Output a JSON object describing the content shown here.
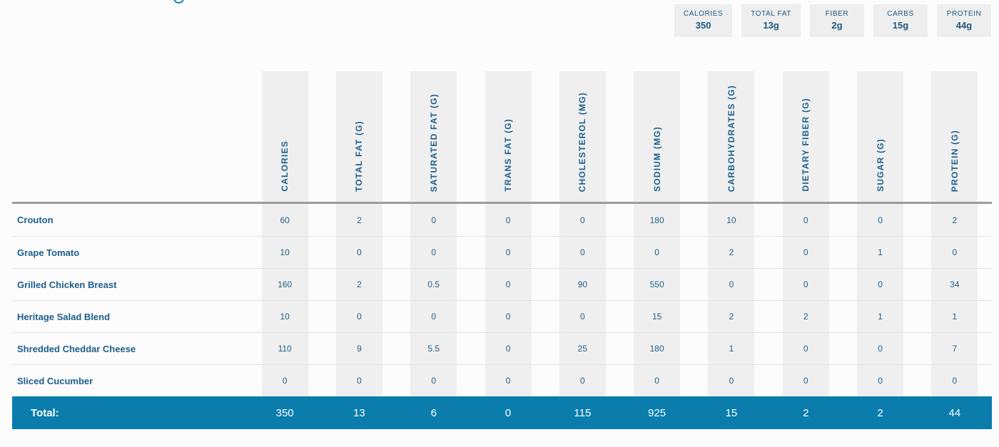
{
  "colors": {
    "accent": "#0b7fad",
    "total_row_bg": "#0a7dad",
    "stripe": "#efefef",
    "text": "#1b5e8c"
  },
  "summary": {
    "items": [
      {
        "label": "CALORIES",
        "value": "350"
      },
      {
        "label": "TOTAL FAT",
        "value": "13g"
      },
      {
        "label": "FIBER",
        "value": "2g"
      },
      {
        "label": "CARBS",
        "value": "15g"
      },
      {
        "label": "PROTEIN",
        "value": "44g"
      }
    ]
  },
  "table": {
    "columns": [
      "CALORIES",
      "TOTAL FAT (G)",
      "SATURATED FAT (G)",
      "TRANS FAT (G)",
      "CHOLESTEROL (MG)",
      "SODIUM (MG)",
      "CARBOHYDRATES (G)",
      "DIETARY FIBER (G)",
      "SUGAR (G)",
      "PROTEIN (G)"
    ],
    "rows": [
      {
        "name": "Crouton",
        "values": [
          "60",
          "2",
          "0",
          "0",
          "0",
          "180",
          "10",
          "0",
          "0",
          "2"
        ]
      },
      {
        "name": "Grape Tomato",
        "values": [
          "10",
          "0",
          "0",
          "0",
          "0",
          "0",
          "2",
          "0",
          "1",
          "0"
        ]
      },
      {
        "name": "Grilled Chicken Breast",
        "values": [
          "160",
          "2",
          "0.5",
          "0",
          "90",
          "550",
          "0",
          "0",
          "0",
          "34"
        ]
      },
      {
        "name": "Heritage Salad Blend",
        "values": [
          "10",
          "0",
          "0",
          "0",
          "0",
          "15",
          "2",
          "2",
          "1",
          "1"
        ]
      },
      {
        "name": "Shredded Cheddar Cheese",
        "values": [
          "110",
          "9",
          "5.5",
          "0",
          "25",
          "180",
          "1",
          "0",
          "0",
          "7"
        ]
      },
      {
        "name": "Sliced Cucumber",
        "values": [
          "0",
          "0",
          "0",
          "0",
          "0",
          "0",
          "0",
          "0",
          "0",
          "0"
        ]
      }
    ],
    "total": {
      "label": "Total:",
      "values": [
        "350",
        "13",
        "6",
        "0",
        "115",
        "925",
        "15",
        "2",
        "2",
        "44"
      ]
    }
  }
}
